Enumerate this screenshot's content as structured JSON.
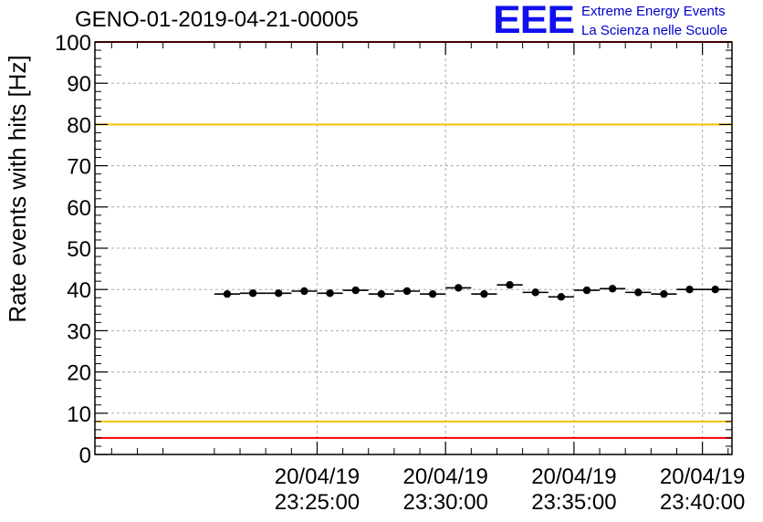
{
  "header": {
    "title": "GENO-01-2019-04-21-00005",
    "logo_text": "EEE",
    "logo_line1": "Extreme Energy Events",
    "logo_line2": "La Scienza nelle Scuole"
  },
  "colors": {
    "threshold_red": "#ff0000",
    "threshold_yellow": "#f2c200",
    "logo_blue": "#1010ee",
    "marker": "#000000",
    "grid": "#aaaaaa"
  },
  "chart_data": {
    "type": "scatter",
    "title": "GENO-01-2019-04-21-00005",
    "xlabel": "",
    "ylabel": "Rate events with hits [Hz]",
    "ylim": [
      0,
      100
    ],
    "yticks": [
      0,
      10,
      20,
      30,
      40,
      50,
      60,
      70,
      80,
      90,
      100
    ],
    "xlim_minutes": [
      -8.65,
      16.15
    ],
    "xticks": [
      {
        "minute": 0,
        "date": "20/04/19",
        "time": "23:25:00"
      },
      {
        "minute": 5,
        "date": "20/04/19",
        "time": "23:30:00"
      },
      {
        "minute": 10,
        "date": "20/04/19",
        "time": "23:35:00"
      },
      {
        "minute": 15,
        "date": "20/04/19",
        "time": "23:40:00"
      }
    ],
    "bin_width_minutes": 1,
    "x_minutes": [
      -3.5,
      -2.5,
      -1.5,
      -0.5,
      0.5,
      1.5,
      2.5,
      3.5,
      4.5,
      5.5,
      6.5,
      7.5,
      8.5,
      9.5,
      10.5,
      11.5,
      12.5,
      13.5,
      14.5,
      15.5
    ],
    "values": [
      38.9,
      39.1,
      39.1,
      39.6,
      39.1,
      39.8,
      38.9,
      39.6,
      38.9,
      40.4,
      38.9,
      41.1,
      39.3,
      38.2,
      39.8,
      40.2,
      39.3,
      38.9,
      40.0,
      40.0
    ],
    "hlines": [
      {
        "name": "upper-red-limit",
        "y": 100,
        "color": "#ff0000"
      },
      {
        "name": "upper-yellow-limit",
        "y": 80,
        "color": "#f2c200"
      },
      {
        "name": "lower-yellow-limit",
        "y": 8,
        "color": "#f2c200"
      },
      {
        "name": "lower-red-limit",
        "y": 4,
        "color": "#ff0000"
      }
    ],
    "grid": true
  }
}
